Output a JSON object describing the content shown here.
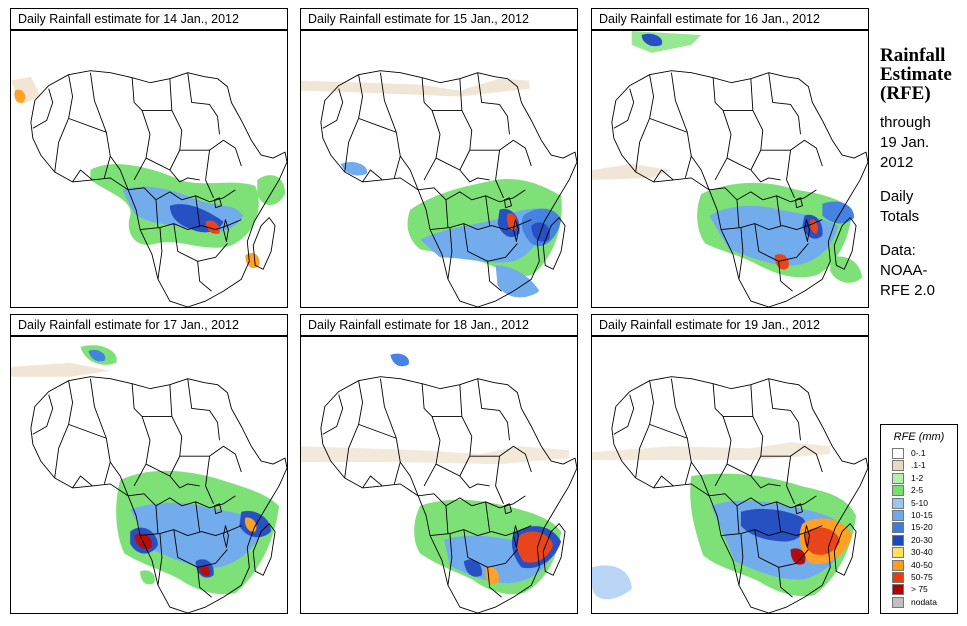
{
  "panels": [
    {
      "title": "Daily Rainfall estimate for  14 Jan., 2012"
    },
    {
      "title": "Daily Rainfall estimate for  15 Jan., 2012"
    },
    {
      "title": "Daily Rainfall estimate for  16 Jan., 2012"
    },
    {
      "title": "Daily Rainfall estimate for  17 Jan., 2012"
    },
    {
      "title": "Daily Rainfall estimate for  18 Jan., 2012"
    },
    {
      "title": "Daily Rainfall estimate for  19 Jan., 2012"
    }
  ],
  "side": {
    "title_line1": "Rainfall",
    "title_line2": "Estimate",
    "title_line3": "(RFE)",
    "through_line1": "through",
    "through_line2": "19 Jan.",
    "through_line3": "2012",
    "totals_line1": "Daily",
    "totals_line2": "Totals",
    "data_line1": "Data:",
    "data_line2": "NOAA-",
    "data_line3": "RFE 2.0"
  },
  "legend": {
    "title": "RFE (mm)",
    "items": [
      {
        "label": "0-.1",
        "color": "#ffffff"
      },
      {
        "label": ".1-1",
        "color": "#ead8c0"
      },
      {
        "label": "1-2",
        "color": "#b4f0a8"
      },
      {
        "label": "2-5",
        "color": "#78e070"
      },
      {
        "label": "5-10",
        "color": "#98c8f0"
      },
      {
        "label": "10-15",
        "color": "#6ca8ec"
      },
      {
        "label": "15-20",
        "color": "#3c7ce0"
      },
      {
        "label": "20-30",
        "color": "#1c48c0"
      },
      {
        "label": "30-40",
        "color": "#ffe060"
      },
      {
        "label": "40-50",
        "color": "#ff9c1c"
      },
      {
        "label": "50-75",
        "color": "#e83c10"
      },
      {
        "label": "> 75",
        "color": "#b00000"
      },
      {
        "label": "nodata",
        "color": "#c0c0c0"
      }
    ]
  }
}
